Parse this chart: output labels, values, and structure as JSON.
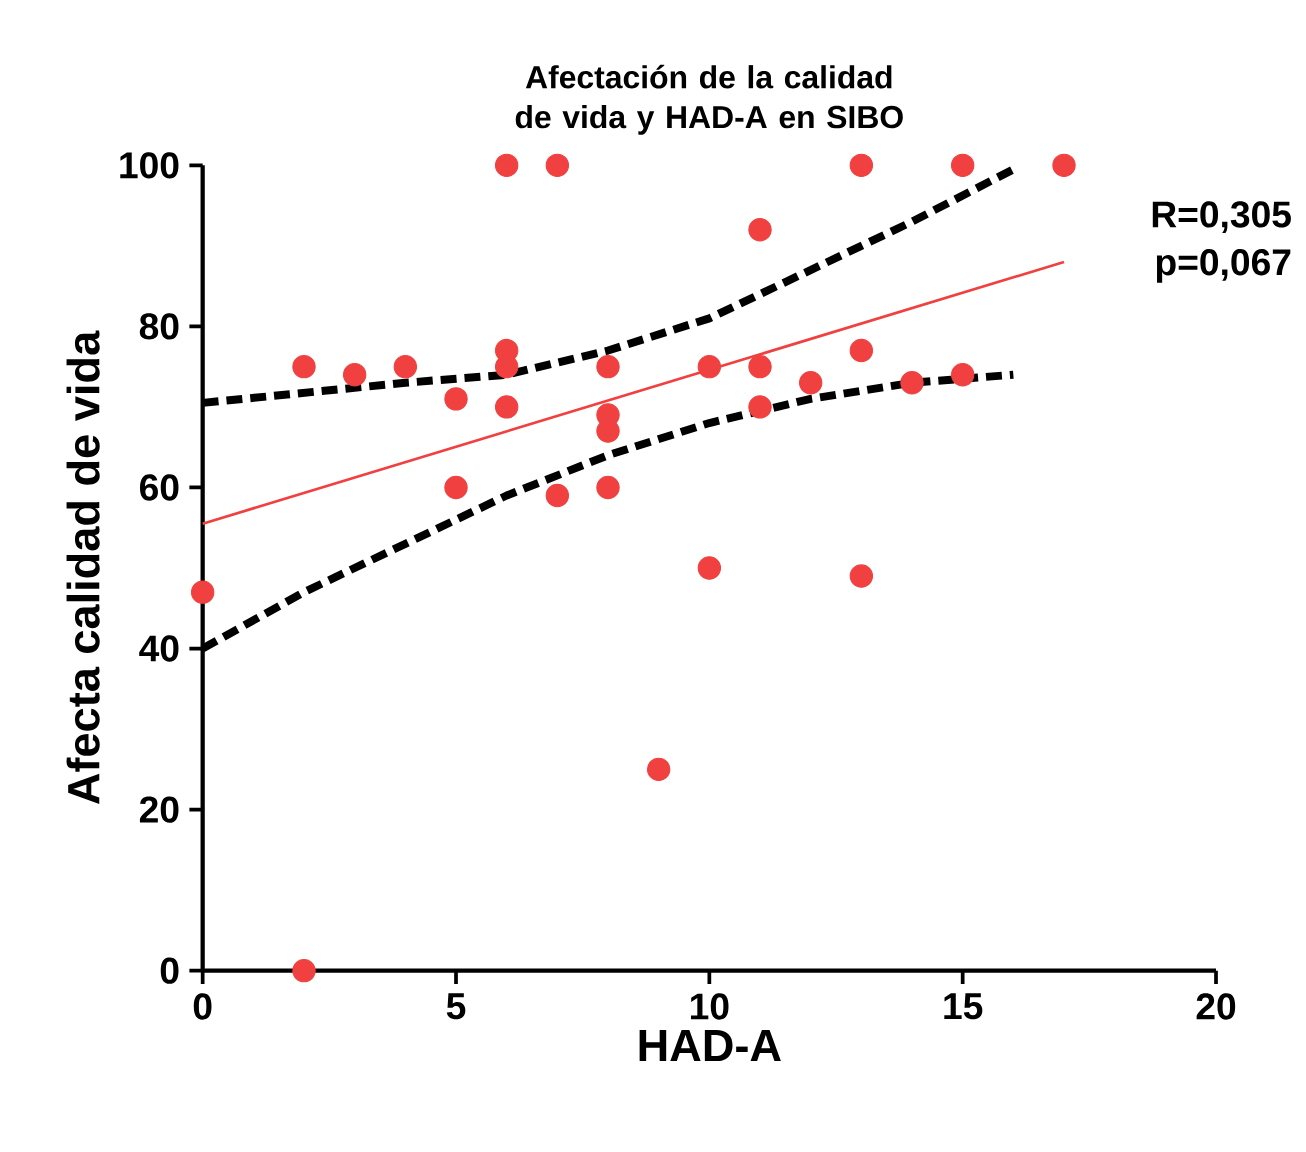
{
  "chart_data": {
    "type": "scatter",
    "title": "Afectación de la calidad de vida y HAD-A en SIBO",
    "xlabel": "HAD-A",
    "ylabel": "Afecta calidad de vida",
    "xlim": [
      0,
      20
    ],
    "xticks": [
      0,
      5,
      10,
      15,
      20
    ],
    "ylim": [
      0,
      100
    ],
    "yticks": [
      0,
      20,
      40,
      60,
      80,
      100
    ],
    "grid": false,
    "annotations": [
      "R=0,305",
      "p=0,067"
    ],
    "series": [
      {
        "type": "scatter",
        "color": "#f04040",
        "x": [
          0,
          2,
          2,
          3,
          4,
          5,
          5,
          6,
          6,
          6,
          6,
          7,
          7,
          8,
          8,
          8,
          8,
          9,
          10,
          10,
          11,
          11,
          11,
          12,
          13,
          13,
          13,
          14,
          15,
          15,
          17
        ],
        "values": [
          47,
          75,
          0,
          74,
          75,
          71,
          60,
          100,
          77,
          75,
          70,
          100,
          59,
          75,
          69,
          67,
          60,
          25,
          75,
          50,
          92,
          75,
          70,
          73,
          100,
          77,
          49,
          73,
          100,
          74,
          100
        ]
      },
      {
        "type": "line",
        "color": "#f04040",
        "line_style": "solid",
        "marker": "none",
        "x": [
          0,
          17
        ],
        "values": [
          55.5,
          88
        ]
      },
      {
        "type": "line",
        "color": "#000000",
        "line_style": "dashed",
        "marker": "none",
        "x": [
          0,
          4,
          6,
          8,
          10,
          12,
          14,
          16
        ],
        "values": [
          70.5,
          73,
          74,
          77,
          81,
          87,
          93,
          99.5
        ]
      },
      {
        "type": "line",
        "color": "#000000",
        "line_style": "dashed",
        "marker": "none",
        "x": [
          0,
          2,
          4,
          6,
          8,
          10,
          12,
          14,
          16
        ],
        "values": [
          40,
          47,
          53,
          59,
          64,
          68,
          71,
          73,
          74
        ]
      }
    ]
  }
}
